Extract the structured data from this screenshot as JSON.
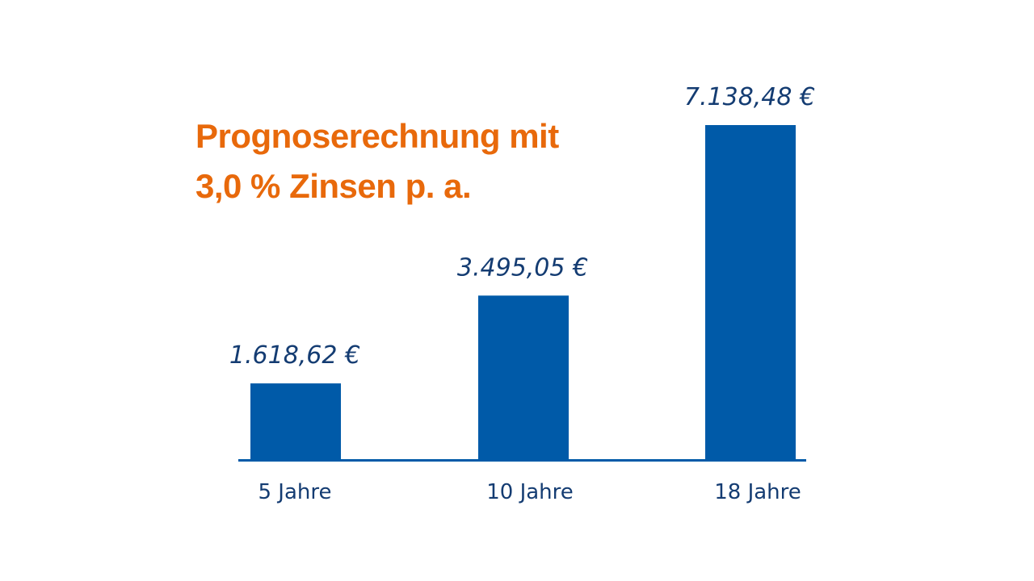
{
  "colors": {
    "title": "#e8690b",
    "bar": "#005aa8",
    "axis": "#005aa8",
    "value_text": "#143c72",
    "tick_text": "#143c72",
    "background": "#ffffff"
  },
  "chart_data": {
    "type": "bar",
    "title_lines": [
      "Prognoserechnung mit",
      "3,0 % Zinsen p. a."
    ],
    "categories": [
      "5 Jahre",
      "10 Jahre",
      "18 Jahre"
    ],
    "values": [
      1618.62,
      3495.05,
      7138.48
    ],
    "value_labels": [
      "1.618,62 €",
      "3.495,05 €",
      "7.138,48 €"
    ],
    "xlabel": "",
    "ylabel": "",
    "ylim": [
      0,
      7138.48
    ],
    "grid": false,
    "legend": null
  }
}
